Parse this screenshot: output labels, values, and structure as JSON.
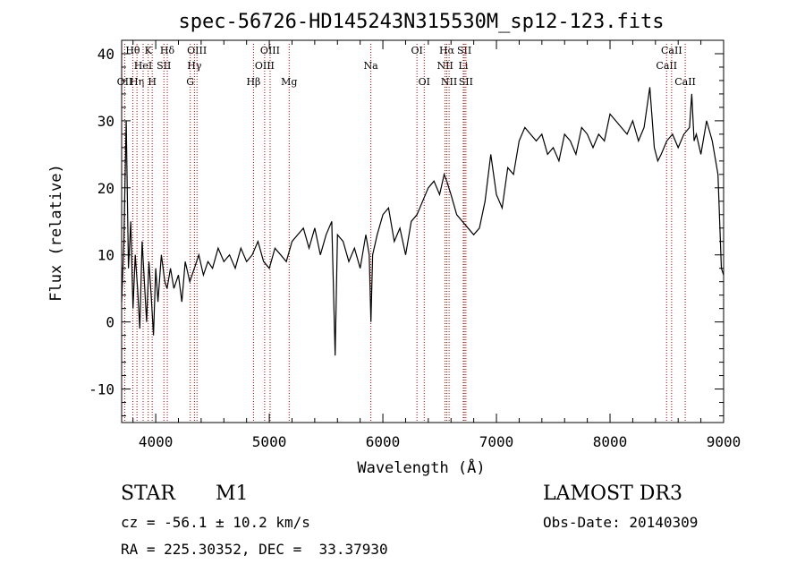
{
  "chart_data": {
    "type": "line",
    "title": "spec-56726-HD145243N315530M_sp12-123.fits",
    "xlabel": "Wavelength (Å)",
    "ylabel": "Flux (relative)",
    "xlim": [
      3700,
      9000
    ],
    "ylim": [
      -15,
      42
    ],
    "xticks": [
      4000,
      5000,
      6000,
      7000,
      8000,
      9000
    ],
    "yticks": [
      -10,
      0,
      10,
      20,
      30,
      40
    ],
    "grid": false,
    "series": [
      {
        "x": [
          3700,
          3720,
          3740,
          3760,
          3780,
          3800,
          3820,
          3840,
          3860,
          3880,
          3900,
          3920,
          3940,
          3960,
          3980,
          4000,
          4020,
          4050,
          4080,
          4100,
          4130,
          4160,
          4200,
          4230,
          4260,
          4300,
          4340,
          4380,
          4420,
          4460,
          4500,
          4550,
          4600,
          4650,
          4700,
          4750,
          4800,
          4850,
          4900,
          4950,
          5000,
          5050,
          5100,
          5150,
          5200,
          5250,
          5300,
          5350,
          5400,
          5450,
          5500,
          5550,
          5580,
          5600,
          5650,
          5700,
          5750,
          5800,
          5850,
          5880,
          5895,
          5910,
          5950,
          6000,
          6050,
          6100,
          6150,
          6200,
          6250,
          6300,
          6350,
          6400,
          6450,
          6500,
          6540,
          6563,
          6600,
          6650,
          6700,
          6750,
          6800,
          6850,
          6900,
          6950,
          7000,
          7050,
          7100,
          7150,
          7200,
          7250,
          7300,
          7350,
          7400,
          7450,
          7500,
          7550,
          7600,
          7650,
          7700,
          7750,
          7800,
          7850,
          7900,
          7950,
          8000,
          8050,
          8100,
          8150,
          8200,
          8250,
          8300,
          8350,
          8390,
          8420,
          8450,
          8500,
          8550,
          8600,
          8650,
          8700,
          8720,
          8740,
          8760,
          8800,
          8850,
          8900,
          8950,
          8980,
          9000
        ],
        "y": [
          3,
          12,
          30,
          8,
          15,
          2,
          10,
          5,
          -1,
          12,
          6,
          0,
          9,
          4,
          -2,
          8,
          3,
          10,
          6,
          5,
          8,
          5,
          7,
          3,
          9,
          6,
          8,
          10,
          7,
          9,
          8,
          11,
          9,
          10,
          8,
          11,
          9,
          10,
          12,
          9,
          8,
          11,
          10,
          9,
          12,
          13,
          14,
          11,
          14,
          10,
          13,
          15,
          -5,
          13,
          12,
          9,
          11,
          8,
          13,
          10,
          0,
          10,
          13,
          16,
          17,
          12,
          14,
          10,
          15,
          16,
          18,
          20,
          21,
          19,
          22,
          21,
          19,
          16,
          15,
          14,
          13,
          14,
          18,
          25,
          19,
          17,
          23,
          22,
          27,
          29,
          28,
          27,
          28,
          25,
          26,
          24,
          28,
          27,
          25,
          29,
          28,
          26,
          28,
          27,
          31,
          30,
          29,
          28,
          30,
          27,
          29,
          35,
          26,
          24,
          25,
          27,
          28,
          26,
          28,
          29,
          34,
          27,
          28,
          25,
          30,
          27,
          22,
          8,
          7
        ]
      }
    ],
    "line_markers": [
      {
        "wavelength": 3727,
        "label": "OII",
        "row": 2
      },
      {
        "wavelength": 3798,
        "label": "Hθ",
        "row": 0
      },
      {
        "wavelength": 3835,
        "label": "Hη",
        "row": 2
      },
      {
        "wavelength": 3889,
        "label": "HeI",
        "row": 1
      },
      {
        "wavelength": 3934,
        "label": "K",
        "row": 0
      },
      {
        "wavelength": 3969,
        "label": "H",
        "row": 2
      },
      {
        "wavelength": 4072,
        "label": "SII",
        "row": 1
      },
      {
        "wavelength": 4102,
        "label": "Hδ",
        "row": 0
      },
      {
        "wavelength": 4304,
        "label": "G",
        "row": 2
      },
      {
        "wavelength": 4341,
        "label": "Hγ",
        "row": 1
      },
      {
        "wavelength": 4363,
        "label": "OIII",
        "row": 0
      },
      {
        "wavelength": 4861,
        "label": "Hβ",
        "row": 2
      },
      {
        "wavelength": 4959,
        "label": "OIII",
        "row": 1
      },
      {
        "wavelength": 5007,
        "label": "OIII",
        "row": 0
      },
      {
        "wavelength": 5175,
        "label": "Mg",
        "row": 2
      },
      {
        "wavelength": 5894,
        "label": "Na",
        "row": 1
      },
      {
        "wavelength": 6300,
        "label": "OI",
        "row": 0
      },
      {
        "wavelength": 6364,
        "label": "OI",
        "row": 2
      },
      {
        "wavelength": 6548,
        "label": "NII",
        "row": 1
      },
      {
        "wavelength": 6563,
        "label": "Hα",
        "row": 0
      },
      {
        "wavelength": 6583,
        "label": "NII",
        "row": 2
      },
      {
        "wavelength": 6708,
        "label": "Li",
        "row": 1
      },
      {
        "wavelength": 6717,
        "label": "SII",
        "row": 0
      },
      {
        "wavelength": 6731,
        "label": "SII",
        "row": 2
      },
      {
        "wavelength": 8498,
        "label": "CaII",
        "row": 1
      },
      {
        "wavelength": 8542,
        "label": "CaII",
        "row": 0
      },
      {
        "wavelength": 8662,
        "label": "CaII",
        "row": 2
      }
    ],
    "line_marker_color": "#b00000"
  },
  "info": {
    "object_class": "STAR",
    "subclass": "M1",
    "survey": "LAMOST DR3",
    "cz": "cz = -56.1 ± 10.2 km/s",
    "obs_date": "Obs-Date: 20140309",
    "coords": "RA = 225.30352, DEC =  33.37930"
  }
}
